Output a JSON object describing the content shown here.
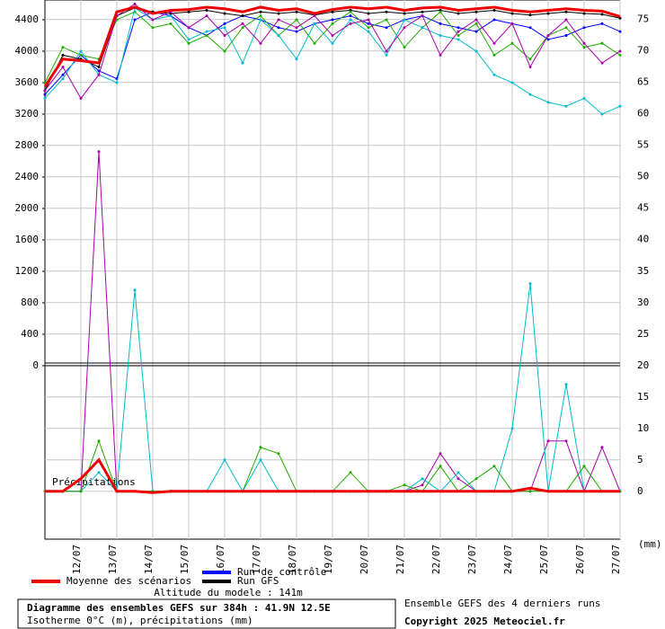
{
  "chart_data": {
    "type": "line",
    "x": [
      0,
      12,
      24,
      36,
      48,
      60,
      72,
      84,
      96,
      108,
      120,
      132,
      144,
      156,
      168,
      180,
      192,
      204,
      216,
      228,
      240,
      252,
      264,
      276,
      288,
      300,
      312,
      324,
      336,
      348,
      360,
      372,
      384
    ],
    "xlim": [
      0,
      384
    ],
    "xticks": [
      {
        "value": 24,
        "label": "12/07"
      },
      {
        "value": 48,
        "label": "13/07"
      },
      {
        "value": 72,
        "label": "14/07"
      },
      {
        "value": 96,
        "label": "15/07"
      },
      {
        "value": 120,
        "label": "16/07"
      },
      {
        "value": 144,
        "label": "17/07"
      },
      {
        "value": 168,
        "label": "18/07"
      },
      {
        "value": 192,
        "label": "19/07"
      },
      {
        "value": 216,
        "label": "20/07"
      },
      {
        "value": 240,
        "label": "21/07"
      },
      {
        "value": 264,
        "label": "22/07"
      },
      {
        "value": 288,
        "label": "23/07"
      },
      {
        "value": 312,
        "label": "24/07"
      },
      {
        "value": 336,
        "label": "25/07"
      },
      {
        "value": 360,
        "label": "26/07"
      },
      {
        "value": 384,
        "label": "27/07"
      }
    ],
    "ylim": [
      -2206,
      4651
    ],
    "yticks": [
      0,
      400,
      800,
      1200,
      1600,
      2000,
      2400,
      2800,
      3200,
      3600,
      4000,
      4400
    ],
    "y2lim": [
      -7.6,
      78.1
    ],
    "y2ticks": [
      0,
      5,
      10,
      15,
      20,
      25,
      30,
      35,
      40,
      45,
      50,
      55,
      60,
      65,
      70,
      75
    ],
    "grid": true,
    "series": [
      {
        "name": "Run de contrôle",
        "color": "#0000ff",
        "values": [
          3450,
          3700,
          3950,
          3750,
          3650,
          4400,
          4500,
          4450,
          4300,
          4200,
          4350,
          4450,
          4400,
          4300,
          4250,
          4350,
          4400,
          4450,
          4350,
          4300,
          4400,
          4450,
          4350,
          4300,
          4250,
          4400,
          4350,
          4300,
          4150,
          4200,
          4300,
          4350,
          4250
        ]
      },
      {
        "name": "Run GFS",
        "color": "#000000",
        "values": [
          3500,
          3950,
          3900,
          3800,
          4450,
          4550,
          4500,
          4480,
          4500,
          4520,
          4480,
          4450,
          4500,
          4480,
          4500,
          4460,
          4500,
          4520,
          4480,
          4500,
          4480,
          4500,
          4520,
          4480,
          4500,
          4520,
          4480,
          4460,
          4480,
          4500,
          4480,
          4470,
          4420
        ]
      },
      {
        "color": "#22aa00",
        "values": [
          3600,
          4050,
          3950,
          3900,
          4400,
          4500,
          4300,
          4350,
          4100,
          4200,
          4000,
          4300,
          4450,
          4200,
          4400,
          4100,
          4350,
          4500,
          4300,
          4400,
          4050,
          4300,
          4500,
          4200,
          4350,
          3950,
          4100,
          3900,
          4200,
          4300,
          4050,
          4100,
          3950
        ]
      },
      {
        "color": "#00bbcc",
        "values": [
          3400,
          3650,
          4000,
          3700,
          3600,
          4550,
          4400,
          4450,
          4150,
          4250,
          4300,
          3850,
          4400,
          4200,
          3900,
          4350,
          4100,
          4400,
          4250,
          3950,
          4400,
          4300,
          4200,
          4150,
          4000,
          3700,
          3600,
          3450,
          3350,
          3300,
          3400,
          3200,
          3300
        ]
      },
      {
        "color": "#aa00aa",
        "values": [
          3500,
          3800,
          3400,
          3700,
          4450,
          4600,
          4400,
          4500,
          4300,
          4450,
          4200,
          4350,
          4100,
          4400,
          4300,
          4450,
          4200,
          4350,
          4400,
          4000,
          4300,
          4450,
          3950,
          4250,
          4400,
          4100,
          4350,
          3800,
          4200,
          4400,
          4100,
          3850,
          4000
        ]
      },
      {
        "name": "Moyenne des scénarios",
        "color": "#ee0000",
        "values": [
          3550,
          3900,
          3880,
          3850,
          4500,
          4560,
          4480,
          4520,
          4530,
          4560,
          4540,
          4500,
          4560,
          4520,
          4540,
          4480,
          4530,
          4560,
          4540,
          4560,
          4520,
          4550,
          4560,
          4520,
          4540,
          4560,
          4520,
          4500,
          4520,
          4540,
          4520,
          4510,
          4440
        ]
      },
      {
        "color": "#aa00aa",
        "axis": "y2",
        "values": [
          0,
          0,
          0,
          54,
          0,
          0,
          0,
          0,
          0,
          0,
          0,
          0,
          0,
          0,
          0,
          0,
          0,
          0,
          0,
          0,
          0,
          1,
          6,
          2,
          0,
          0,
          0,
          0,
          8,
          8,
          0,
          7,
          0
        ]
      },
      {
        "color": "#00bbcc",
        "axis": "y2",
        "values": [
          0,
          0,
          0,
          3,
          0,
          32,
          0,
          0,
          0,
          0,
          5,
          0,
          5,
          0,
          0,
          0,
          0,
          0,
          0,
          0,
          0,
          2,
          0,
          3,
          0,
          0,
          10,
          33,
          0,
          17,
          0,
          0,
          0
        ]
      },
      {
        "color": "#22aa00",
        "axis": "y2",
        "values": [
          0,
          0,
          0,
          8,
          0,
          0,
          0,
          0,
          0,
          0,
          0,
          0,
          7,
          6,
          0,
          0,
          0,
          3,
          0,
          0,
          1,
          0,
          4,
          0,
          2,
          4,
          0,
          0,
          0,
          0,
          4,
          0,
          0
        ]
      },
      {
        "color": "#ee0000",
        "axis": "y2",
        "values": [
          0,
          0,
          2,
          5,
          0,
          0,
          -0.2,
          0,
          0,
          0,
          0,
          0,
          0,
          0,
          0,
          0,
          0,
          0,
          0,
          0,
          0,
          0,
          0,
          0,
          0,
          0,
          0,
          0.5,
          0,
          0,
          0,
          0,
          0
        ]
      }
    ],
    "precip_label": "Précipitations",
    "unit_label": "(mm)",
    "altitude": "Altitude du modele : 141m",
    "title": "Diagramme des ensembles GEFS sur 384h : 41.9N 12.5E",
    "subtitle": "Isotherme 0°C (m), précipitations (mm)",
    "note": "Ensemble GEFS des 4 derniers runs",
    "copyright": "Copyright 2025 Meteociel.fr"
  }
}
